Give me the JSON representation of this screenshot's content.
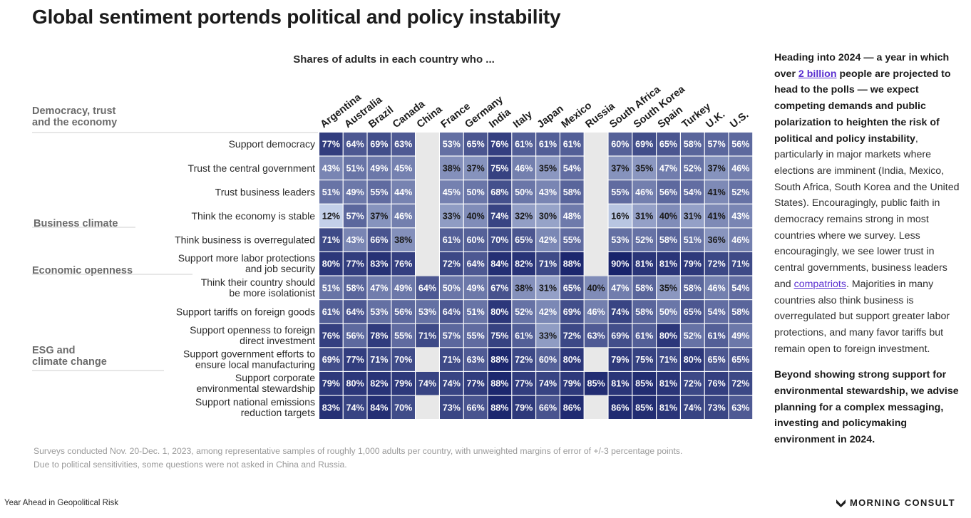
{
  "title": "Global sentiment portends political and policy instability",
  "sidebar": {
    "p1_a": "Heading into 2024 — a year in which over ",
    "p1_link": "2 billion",
    "p1_b": " people are projected to head to the polls — we expect competing demands and public polarization to heighten the risk of political and policy instability",
    "p1_c": ", particularly in major markets where elections are imminent (India, Mexico, South Africa, South Korea and the United States). Encouragingly, public faith in democracy remains strong in most countries where we survey. Less encouragingly, we see lower trust in central governments, business leaders and ",
    "p1_link2": "compatriots",
    "p1_d": ". Majorities in many countries also think business is overregulated but support greater labor protections, and many favor tariffs but remain open to foreign investment.",
    "p2": "Beyond showing strong support for environmental stewardship, we advise planning for a complex messaging, investing and policymaking environment in 2024."
  },
  "footnote": {
    "line1": "Surveys conducted Nov. 20-Dec. 1, 2023, among representative samples of roughly 1,000 adults per country, with unweighted margins of error of +/-3 percentage points.",
    "line2": "Due to political sensitivities, some questions were not asked in China and Russia."
  },
  "footer": {
    "left": "Year Ahead in Geopolitical Risk",
    "brand": "MORNING CONSULT"
  },
  "chart_data": {
    "type": "heatmap",
    "title": "Shares of adults in each country who ...",
    "value_suffix": "%",
    "colors": {
      "low": "#c9d6ee",
      "high": "#18236b",
      "missing": "#e8e8e8",
      "dark_text": "#1a1a1a",
      "light_text": "#ffffff"
    },
    "countries": [
      "Argentina",
      "Australia",
      "Brazil",
      "Canada",
      "China",
      "France",
      "Germany",
      "India",
      "Italy",
      "Japan",
      "Mexico",
      "Russia",
      "South Africa",
      "South Korea",
      "Spain",
      "Turkey",
      "U.K.",
      "U.S."
    ],
    "categories": [
      {
        "label": [
          "Democracy, trust",
          "and the economy"
        ]
      },
      {
        "label": [
          "Business climate"
        ]
      },
      {
        "label": [
          "Economic openness"
        ]
      },
      {
        "label": [
          "ESG and",
          "climate change"
        ]
      }
    ],
    "rows": [
      {
        "label": [
          "Support democracy"
        ],
        "values": [
          77,
          64,
          69,
          63,
          null,
          53,
          65,
          76,
          61,
          61,
          61,
          null,
          60,
          69,
          65,
          58,
          57,
          56
        ]
      },
      {
        "label": [
          "Trust the central government"
        ],
        "values": [
          43,
          51,
          49,
          45,
          null,
          38,
          37,
          75,
          46,
          35,
          54,
          null,
          37,
          35,
          47,
          52,
          37,
          46
        ]
      },
      {
        "label": [
          "Trust business leaders"
        ],
        "values": [
          51,
          49,
          55,
          44,
          null,
          45,
          50,
          68,
          50,
          43,
          58,
          null,
          55,
          46,
          56,
          54,
          41,
          52
        ]
      },
      {
        "label": [
          "Think the economy is stable"
        ],
        "values": [
          12,
          57,
          37,
          46,
          null,
          33,
          40,
          74,
          32,
          30,
          48,
          null,
          16,
          31,
          40,
          31,
          41,
          43
        ]
      },
      {
        "label": [
          "Think business is overregulated"
        ],
        "values": [
          71,
          43,
          66,
          38,
          null,
          61,
          60,
          70,
          65,
          42,
          55,
          null,
          53,
          52,
          58,
          51,
          36,
          46
        ]
      },
      {
        "label": [
          "Support more labor protections",
          "and job security"
        ],
        "values": [
          80,
          77,
          83,
          76,
          null,
          72,
          64,
          84,
          82,
          71,
          88,
          null,
          90,
          81,
          81,
          79,
          72,
          71
        ]
      },
      {
        "label": [
          "Think their country should",
          "be more isolationist"
        ],
        "values": [
          51,
          58,
          47,
          49,
          64,
          50,
          49,
          67,
          38,
          31,
          65,
          40,
          47,
          58,
          35,
          58,
          46,
          54
        ]
      },
      {
        "label": [
          "Support tariffs on foreign goods"
        ],
        "values": [
          61,
          64,
          53,
          56,
          53,
          64,
          51,
          80,
          52,
          42,
          69,
          46,
          74,
          58,
          50,
          65,
          54,
          58
        ]
      },
      {
        "label": [
          "Support openness to foreign",
          "direct investment"
        ],
        "values": [
          76,
          56,
          78,
          55,
          71,
          57,
          55,
          75,
          61,
          33,
          72,
          63,
          69,
          61,
          80,
          52,
          61,
          49
        ]
      },
      {
        "label": [
          "Support government efforts to",
          "ensure local manufacturing"
        ],
        "values": [
          69,
          77,
          71,
          70,
          null,
          71,
          63,
          88,
          72,
          60,
          80,
          null,
          79,
          75,
          71,
          80,
          65,
          65
        ]
      },
      {
        "label": [
          "Support corporate",
          "environmental stewardship"
        ],
        "values": [
          79,
          80,
          82,
          79,
          74,
          74,
          77,
          88,
          77,
          74,
          79,
          85,
          81,
          85,
          81,
          72,
          76,
          72
        ]
      },
      {
        "label": [
          "Support national emissions",
          "reduction targets"
        ],
        "values": [
          83,
          74,
          84,
          70,
          null,
          73,
          66,
          88,
          79,
          66,
          86,
          null,
          86,
          85,
          81,
          74,
          73,
          63
        ]
      }
    ]
  }
}
